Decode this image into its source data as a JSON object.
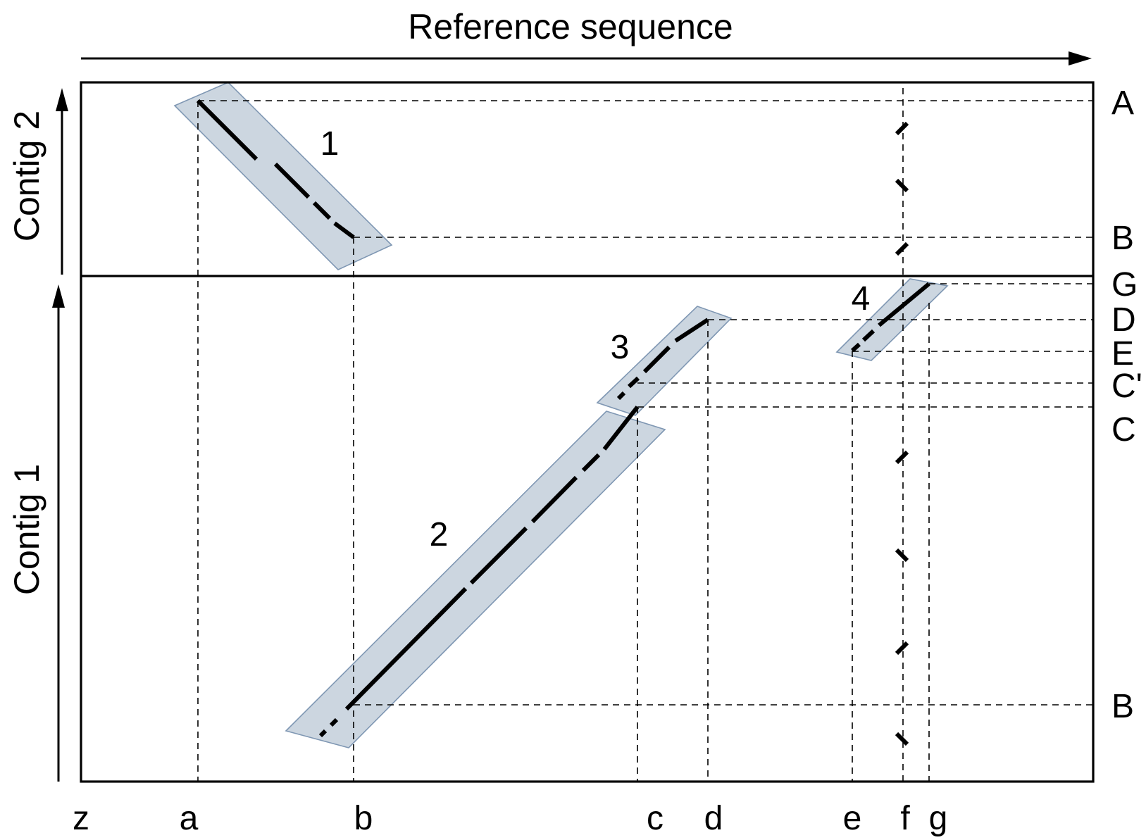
{
  "title": "Reference sequence",
  "contigs": {
    "top": "Contig 2",
    "bottom": "Contig 1"
  },
  "x_ticks": [
    "z",
    "a",
    "b",
    "c",
    "d",
    "e",
    "f",
    "g"
  ],
  "y_ticks_right": {
    "A": "A",
    "B_top": "B",
    "G": "G",
    "D": "D",
    "E": "E",
    "Cp": "C'",
    "C": "C",
    "B_bottom": "B"
  },
  "segments": [
    "1",
    "2",
    "3",
    "4"
  ]
}
